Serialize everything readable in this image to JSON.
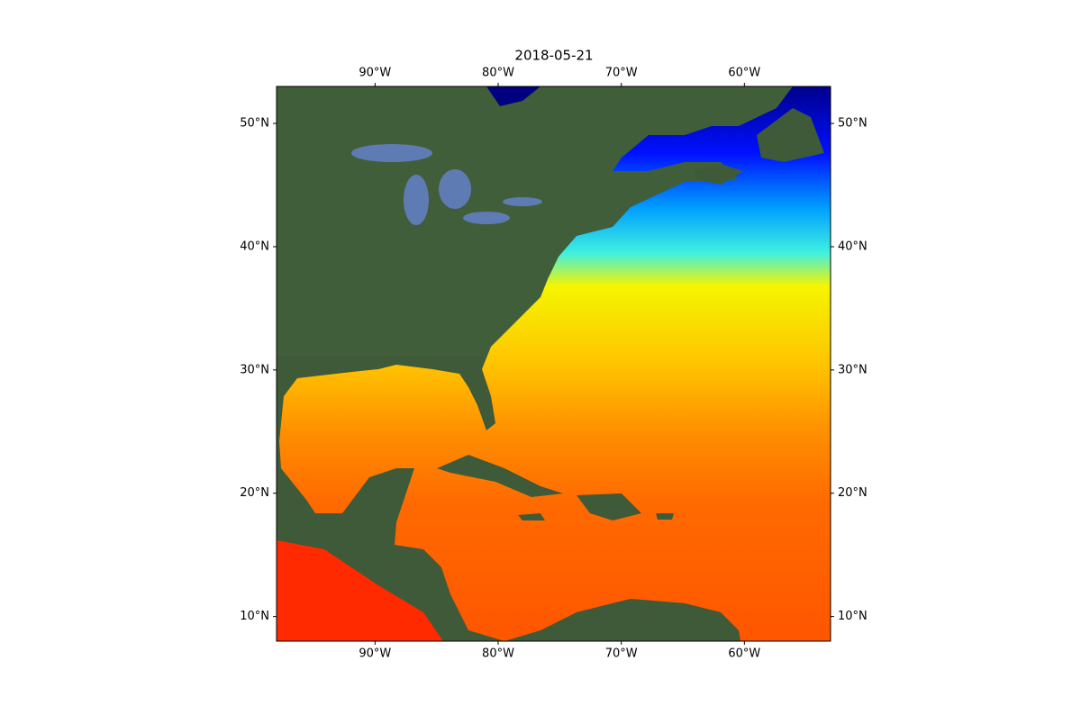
{
  "chart_data": {
    "type": "map",
    "title": "2018-05-21",
    "xlim": [
      -98,
      -53
    ],
    "ylim": [
      8,
      53
    ],
    "xticks": [
      {
        "value": -90,
        "label": "90°W"
      },
      {
        "value": -80,
        "label": "80°W"
      },
      {
        "value": -70,
        "label": "70°W"
      },
      {
        "value": -60,
        "label": "60°W"
      }
    ],
    "yticks": [
      {
        "value": 10,
        "label": "10°N"
      },
      {
        "value": 20,
        "label": "20°N"
      },
      {
        "value": 30,
        "label": "30°N"
      },
      {
        "value": 40,
        "label": "40°N"
      },
      {
        "value": 50,
        "label": "50°N"
      }
    ]
  }
}
